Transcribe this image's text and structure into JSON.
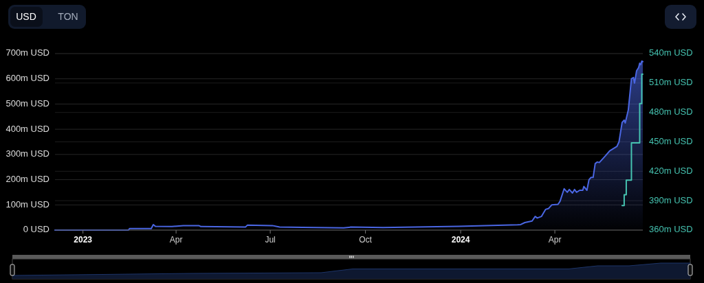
{
  "chart_data": {
    "type": "area",
    "annotations": [
      "USD",
      "TON"
    ],
    "xlim": [
      "2022-12-05",
      "2024-06-25"
    ],
    "xticks": [
      {
        "value": "2023-01-01",
        "label": "2023"
      },
      {
        "value": "2023-04-01",
        "label": "Apr"
      },
      {
        "value": "2023-07-01",
        "label": "Jul"
      },
      {
        "value": "2023-10-01",
        "label": "Oct"
      },
      {
        "value": "2024-01-01",
        "label": "2024"
      },
      {
        "value": "2024-04-01",
        "label": "Apr"
      }
    ],
    "ylim": [
      0,
      700
    ],
    "yticks": [
      {
        "value": 0,
        "label": "0 USD"
      },
      {
        "value": 100,
        "label": "100m USD"
      },
      {
        "value": 200,
        "label": "200m USD"
      },
      {
        "value": 300,
        "label": "300m USD"
      },
      {
        "value": 400,
        "label": "400m USD"
      },
      {
        "value": 500,
        "label": "500m USD"
      },
      {
        "value": 600,
        "label": "600m USD"
      },
      {
        "value": 700,
        "label": "700m USD"
      }
    ],
    "y2lim": [
      360,
      540
    ],
    "y2ticks": [
      {
        "value": 360,
        "label": "360m USD"
      },
      {
        "value": 390,
        "label": "390m USD"
      },
      {
        "value": 420,
        "label": "420m USD"
      },
      {
        "value": 450,
        "label": "450m USD"
      },
      {
        "value": 480,
        "label": "480m USD"
      },
      {
        "value": 510,
        "label": "510m USD"
      },
      {
        "value": 540,
        "label": "540m USD"
      }
    ],
    "grid": "y",
    "series": [
      {
        "color": "#4a66e3",
        "x": [
          "2022-12-05",
          "2023-02-14",
          "2023-02-15",
          "2023-03-08",
          "2023-03-10",
          "2023-03-12",
          "2023-03-28",
          "2023-04-08",
          "2023-04-23",
          "2023-04-25",
          "2023-06-07",
          "2023-06-09",
          "2023-07-03",
          "2023-07-10",
          "2023-08-01",
          "2023-09-10",
          "2023-09-17",
          "2023-10-18",
          "2023-12-30",
          "2024-02-25",
          "2024-02-28",
          "2024-03-03",
          "2024-03-10",
          "2024-03-13",
          "2024-03-15",
          "2024-03-19",
          "2024-03-23",
          "2024-03-26",
          "2024-03-29",
          "2024-04-04",
          "2024-04-06",
          "2024-04-10",
          "2024-04-13",
          "2024-04-15",
          "2024-04-18",
          "2024-04-20",
          "2024-04-22",
          "2024-04-25",
          "2024-04-28",
          "2024-04-29",
          "2024-05-02",
          "2024-05-04",
          "2024-05-06",
          "2024-05-08",
          "2024-05-10",
          "2024-05-12",
          "2024-05-14",
          "2024-05-20",
          "2024-05-24",
          "2024-05-31",
          "2024-06-02",
          "2024-06-05",
          "2024-06-07",
          "2024-06-08",
          "2024-06-11",
          "2024-06-14",
          "2024-06-16",
          "2024-06-17",
          "2024-06-19",
          "2024-06-21",
          "2024-06-22",
          "2024-06-23",
          "2024-06-24",
          "2024-06-25"
        ],
        "values": [
          0,
          0,
          6,
          6,
          22,
          15,
          14,
          18,
          18,
          14,
          12,
          20,
          18,
          12,
          11,
          9,
          12,
          10,
          15,
          21,
          22,
          30,
          36,
          54,
          48,
          54,
          82,
          86,
          100,
          102,
          114,
          164,
          150,
          161,
          147,
          161,
          150,
          158,
          158,
          173,
          158,
          200,
          209,
          209,
          264,
          270,
          268,
          295,
          314,
          332,
          350,
          427,
          436,
          425,
          477,
          600,
          605,
          583,
          632,
          645,
          662,
          656,
          670,
          668
        ]
      },
      {
        "type": "step",
        "axis": "y2",
        "color": "#45c2b0",
        "x": [
          "2024-06-05",
          "2024-06-07",
          "2024-06-09",
          "2024-06-14",
          "2024-06-22",
          "2024-06-24",
          "2024-06-25"
        ],
        "values": [
          385,
          396,
          411,
          449,
          489,
          519,
          519
        ]
      }
    ]
  }
}
